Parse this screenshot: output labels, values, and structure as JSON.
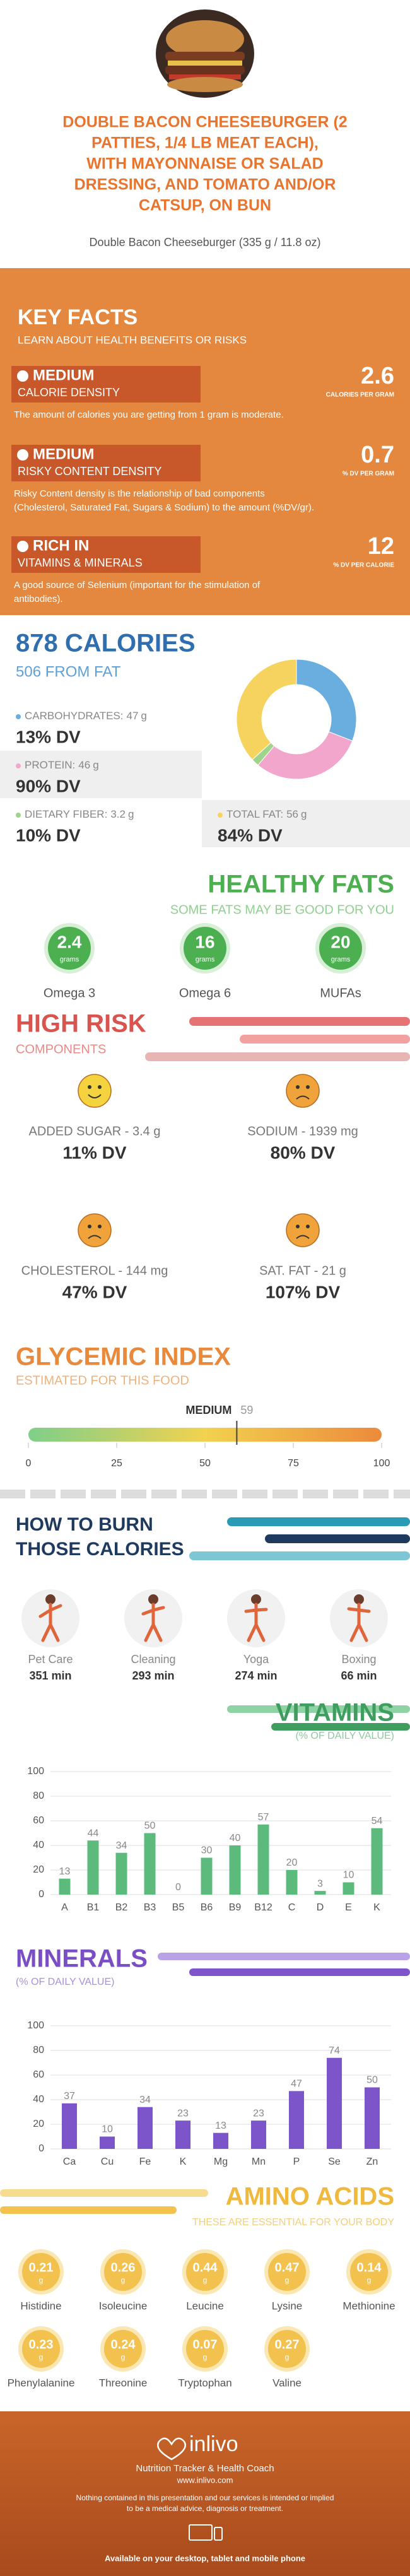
{
  "header": {
    "title_lines": [
      "DOUBLE BACON CHEESEBURGER (2",
      "PATTIES, 1/4 LB MEAT EACH),",
      "WITH MAYONNAISE OR SALAD",
      "DRESSING, AND TOMATO AND/OR",
      "CATSUP, ON BUN"
    ],
    "subtitle": "Double Bacon Cheeseburger (335 g / 11.8 oz)"
  },
  "key_facts": {
    "title": "KEY FACTS",
    "subtitle": "LEARN ABOUT HEALTH BENEFITS OR RISKS",
    "facts": [
      {
        "level": "MEDIUM",
        "name": "CALORIE DENSITY",
        "value": "2.6",
        "unit": "CALORIES PER GRAM",
        "description": [
          "The amount of calories you are getting from 1 gram is moderate."
        ]
      },
      {
        "level": "MEDIUM",
        "name": "RISKY CONTENT DENSITY",
        "value": "0.7",
        "unit": "% DV PER GRAM",
        "description": [
          "Risky Content density is the relationship of bad components",
          "(Cholesterol, Saturated Fat, Sugars & Sodium) to the amount (%DV/gr)."
        ]
      },
      {
        "level": "RICH IN",
        "name": "VITAMINS & MINERALS",
        "value": "12",
        "unit": "% DV PER CALORIE",
        "description": [
          "A good source of Selenium (important for the stimulation of",
          "antibodies)."
        ]
      }
    ]
  },
  "calories": {
    "title": "878 CALORIES",
    "from_fat": "506 FROM FAT",
    "nutrients": [
      {
        "label": "CARBOHYDRATES:",
        "amount": 47,
        "unit": "g",
        "dv": "13% DV",
        "color": "#6aaee0"
      },
      {
        "label": "PROTEIN:",
        "amount": 46,
        "unit": "g",
        "dv": "90% DV",
        "color": "#f3a6cb"
      },
      {
        "label": "DIETARY FIBER:",
        "amount": 3.2,
        "unit": "g",
        "dv": "10% DV",
        "color": "#9fd48c"
      },
      {
        "label": "TOTAL FAT:",
        "amount": 56,
        "unit": "g",
        "dv": "84% DV",
        "color": "#f6d35f"
      }
    ]
  },
  "healthy_fats": {
    "title": "HEALTHY FATS",
    "subtitle": "SOME FATS MAY BE GOOD FOR YOU",
    "items": [
      {
        "amount": "2.4",
        "unit": "grams",
        "name": "Omega 3"
      },
      {
        "amount": "16",
        "unit": "grams",
        "name": "Omega 6"
      },
      {
        "amount": "20",
        "unit": "grams",
        "name": "MUFAs"
      }
    ]
  },
  "high_risk": {
    "title": "HIGH RISK",
    "subtitle": "COMPONENTS",
    "items": [
      {
        "label": "ADDED SUGAR - 3.4 g",
        "dv": "11% DV"
      },
      {
        "label": "SODIUM - 1939 mg",
        "dv": "80% DV"
      },
      {
        "label": "CHOLESTEROL - 144 mg",
        "dv": "47% DV"
      },
      {
        "label": "SAT. FAT - 21 g",
        "dv": "107% DV"
      }
    ]
  },
  "glycemic_index": {
    "title": "GLYCEMIC INDEX",
    "subtitle": "ESTIMATED FOR THIS FOOD",
    "level": "MEDIUM",
    "value": 59,
    "xlim": [
      0,
      100
    ],
    "xticks": [
      0,
      25,
      50,
      75,
      100
    ]
  },
  "burn": {
    "title_lines": [
      "HOW TO BURN",
      "THOSE CALORIES"
    ],
    "activities": [
      {
        "name": "Pet Care",
        "time": "351 min"
      },
      {
        "name": "Cleaning",
        "time": "293 min"
      },
      {
        "name": "Yoga",
        "time": "274 min"
      },
      {
        "name": "Boxing",
        "time": "66 min"
      }
    ]
  },
  "vitamins": {
    "type": "bar",
    "title": "VITAMINS",
    "subtitle": "(% OF DAILY VALUE)",
    "categories": [
      "A",
      "B1",
      "B2",
      "B3",
      "B5",
      "B6",
      "B9",
      "B12",
      "C",
      "D",
      "E",
      "K"
    ],
    "values": [
      13,
      44,
      34,
      50,
      0,
      30,
      40,
      57,
      20,
      3,
      10,
      54
    ],
    "color": "#5dba7d",
    "ylim": [
      0,
      100
    ],
    "yticks": [
      0,
      20,
      40,
      60,
      80,
      100
    ],
    "grid": true
  },
  "minerals": {
    "type": "bar",
    "title": "MINERALS",
    "subtitle": "(% OF DAILY VALUE)",
    "categories": [
      "Ca",
      "Cu",
      "Fe",
      "K",
      "Mg",
      "Mn",
      "P",
      "Se",
      "Zn"
    ],
    "values": [
      37,
      10,
      34,
      23,
      13,
      23,
      47,
      74,
      50
    ],
    "color": "#7b55c9",
    "ylim": [
      0,
      100
    ],
    "yticks": [
      0,
      20,
      40,
      60,
      80,
      100
    ],
    "grid": true
  },
  "amino_acids": {
    "title": "AMINO ACIDS",
    "subtitle": "THESE ARE ESSENTIAL FOR YOUR BODY",
    "unit": "g",
    "items": [
      {
        "name": "Histidine",
        "amount": 0.21
      },
      {
        "name": "Isoleucine",
        "amount": 0.26
      },
      {
        "name": "Leucine",
        "amount": 0.44
      },
      {
        "name": "Lysine",
        "amount": 0.47
      },
      {
        "name": "Methionine",
        "amount": 0.14
      },
      {
        "name": "Phenylalanine",
        "amount": 0.23
      },
      {
        "name": "Threonine",
        "amount": 0.24
      },
      {
        "name": "Tryptophan",
        "amount": 0.07
      },
      {
        "name": "Valine",
        "amount": 0.27
      }
    ]
  },
  "footer": {
    "brand": "inlivo",
    "tagline": "Nutrition Tracker & Health Coach",
    "url": "www.inlivo.com",
    "disclaimer": [
      "Nothing contained in this presentation and our services is intended or implied",
      "to be a medical advice, diagnosis or treatment."
    ],
    "availability": "Available on your desktop, tablet and mobile phone"
  }
}
